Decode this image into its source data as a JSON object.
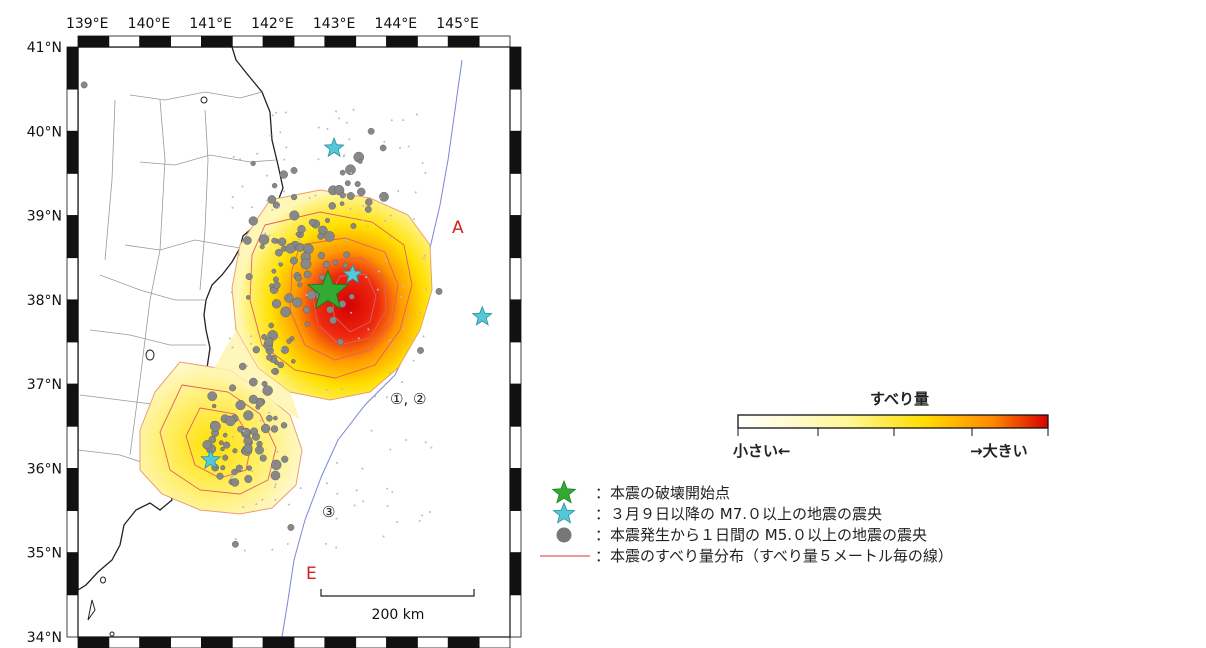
{
  "map": {
    "lon_labels": [
      "139°E",
      "140°E",
      "141°E",
      "142°E",
      "143°E",
      "144°E",
      "145°E"
    ],
    "lat_labels": [
      "41°N",
      "40°N",
      "39°N",
      "38°N",
      "37°N",
      "36°N",
      "35°N",
      "34°N"
    ],
    "extent": {
      "lon_min": 138.85,
      "lon_max": 145.85,
      "lat_min": 34.0,
      "lat_max": 41.0
    },
    "region_labels": {
      "north": "A",
      "south": "E"
    },
    "segment_labels": {
      "upper": "①, ②",
      "lower": "③"
    },
    "scale_bar_label": "200 km",
    "mainshock_epicenter": {
      "lon": 142.9,
      "lat": 38.1,
      "icon": "green-star-icon",
      "color": "#33aa33"
    },
    "m7_epicenters": [
      {
        "lon": 143.0,
        "lat": 39.8
      },
      {
        "lon": 143.3,
        "lat": 38.3
      },
      {
        "lon": 145.4,
        "lat": 37.8
      },
      {
        "lon": 141.0,
        "lat": 36.1
      }
    ],
    "slip_colors": {
      "low": "#ffffcc",
      "mid": "#ffe000",
      "high": "#dd0000"
    },
    "aftershock_color": "#888888",
    "contour_color": "#e06060"
  },
  "legend": {
    "colorbar_title": "すべり量",
    "colorbar_low": "小さい←",
    "colorbar_high": "→大きい",
    "items": [
      {
        "icon": "green-star-icon",
        "color": "#33aa33",
        "text": "：本震の破壊開始点"
      },
      {
        "icon": "cyan-star-icon",
        "color": "#55c8d8",
        "text": "：３月９日以降の M7.０以上の地震の震央"
      },
      {
        "icon": "gray-circle-icon",
        "color": "#777777",
        "text": "：本震発生から１日間の M5.０以上の地震の震央"
      },
      {
        "icon": "red-line-icon",
        "color": "#e06060",
        "text": "：本震のすべり量分布（すべり量５メートル毎の線）"
      }
    ]
  }
}
